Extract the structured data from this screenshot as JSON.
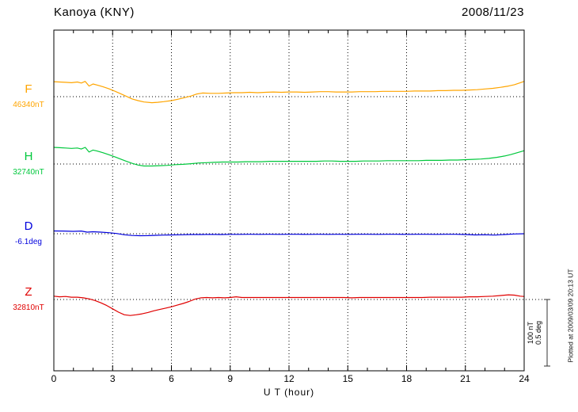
{
  "header": {
    "title": "Kanoya (KNY)",
    "date": "2008/11/23"
  },
  "chart_data": {
    "type": "line",
    "title": "Kanoya (KNY)",
    "date": "2008/11/23",
    "xlabel": "U T (hour)",
    "ylabel": "",
    "x_range": [
      0,
      24
    ],
    "x_ticks": [
      "0",
      "3",
      "6",
      "9",
      "12",
      "15",
      "18",
      "21",
      "24"
    ],
    "grid_hours": [
      3,
      6,
      9,
      12,
      15,
      18,
      21
    ],
    "grid": "dotted-vertical-every-3h, dotted-baseline-per-trace",
    "scale_bar": {
      "nT": 100,
      "deg": 0.5,
      "labels": [
        "100 nT",
        "0.5 deg"
      ]
    },
    "plotted_at": "Plotted at 2009/03/09 20:13 UT",
    "series": [
      {
        "name": "F",
        "unit": "nT",
        "baseline_value": 46340,
        "baseline_label": "46340nT",
        "color": "#ffa500",
        "points": [
          [
            0,
            22.5
          ],
          [
            0.3,
            22
          ],
          [
            0.6,
            21.5
          ],
          [
            0.9,
            21
          ],
          [
            1.2,
            22
          ],
          [
            1.4,
            20.5
          ],
          [
            1.6,
            23
          ],
          [
            1.8,
            16
          ],
          [
            2.0,
            19
          ],
          [
            2.2,
            17.5
          ],
          [
            2.5,
            15
          ],
          [
            2.8,
            12
          ],
          [
            3.1,
            8.5
          ],
          [
            3.4,
            4.5
          ],
          [
            3.7,
            0.5
          ],
          [
            4.0,
            -3.5
          ],
          [
            4.3,
            -6
          ],
          [
            4.6,
            -8
          ],
          [
            5.0,
            -9
          ],
          [
            5.3,
            -8.5
          ],
          [
            5.6,
            -7.5
          ],
          [
            6.0,
            -6
          ],
          [
            6.3,
            -4
          ],
          [
            6.6,
            -2
          ],
          [
            7.0,
            1
          ],
          [
            7.3,
            4
          ],
          [
            7.6,
            5.5
          ],
          [
            8.0,
            5
          ],
          [
            8.4,
            5
          ],
          [
            8.8,
            5.5
          ],
          [
            9.2,
            6
          ],
          [
            9.6,
            6
          ],
          [
            10.0,
            6.5
          ],
          [
            10.4,
            6
          ],
          [
            10.8,
            6.5
          ],
          [
            11.2,
            7
          ],
          [
            11.6,
            6.5
          ],
          [
            12.0,
            7
          ],
          [
            12.4,
            7
          ],
          [
            12.8,
            6.5
          ],
          [
            13.2,
            7
          ],
          [
            13.6,
            7.5
          ],
          [
            14.0,
            7.5
          ],
          [
            14.4,
            7
          ],
          [
            14.8,
            7
          ],
          [
            15.2,
            7
          ],
          [
            15.6,
            7.5
          ],
          [
            16.0,
            7.5
          ],
          [
            16.4,
            7.5
          ],
          [
            16.8,
            8
          ],
          [
            17.2,
            8
          ],
          [
            17.6,
            8
          ],
          [
            18.0,
            8
          ],
          [
            18.4,
            8.5
          ],
          [
            18.8,
            8.5
          ],
          [
            19.2,
            8.5
          ],
          [
            19.6,
            9
          ],
          [
            20.0,
            9
          ],
          [
            20.4,
            9.5
          ],
          [
            20.8,
            9.5
          ],
          [
            21.2,
            10
          ],
          [
            21.6,
            10.5
          ],
          [
            22.0,
            11.5
          ],
          [
            22.4,
            12.5
          ],
          [
            22.8,
            14
          ],
          [
            23.2,
            16
          ],
          [
            23.5,
            18
          ],
          [
            23.8,
            21
          ],
          [
            24.0,
            23
          ]
        ]
      },
      {
        "name": "H",
        "unit": "nT",
        "baseline_value": 32740,
        "baseline_label": "32740nT",
        "color": "#00c83c",
        "points": [
          [
            0,
            25
          ],
          [
            0.3,
            24.5
          ],
          [
            0.6,
            24
          ],
          [
            0.9,
            23.5
          ],
          [
            1.2,
            24
          ],
          [
            1.4,
            22.5
          ],
          [
            1.6,
            25
          ],
          [
            1.8,
            18
          ],
          [
            2.0,
            21
          ],
          [
            2.2,
            19.5
          ],
          [
            2.5,
            17
          ],
          [
            2.8,
            14
          ],
          [
            3.1,
            11
          ],
          [
            3.4,
            7.5
          ],
          [
            3.7,
            4
          ],
          [
            4.0,
            1
          ],
          [
            4.3,
            -1.5
          ],
          [
            4.6,
            -3
          ],
          [
            5.0,
            -3
          ],
          [
            5.4,
            -2.5
          ],
          [
            5.8,
            -2
          ],
          [
            6.2,
            -1
          ],
          [
            6.6,
            -0.5
          ],
          [
            7.0,
            0.5
          ],
          [
            7.4,
            1.5
          ],
          [
            7.8,
            2
          ],
          [
            8.2,
            2.5
          ],
          [
            8.6,
            3
          ],
          [
            9.0,
            3
          ],
          [
            9.4,
            3
          ],
          [
            9.8,
            3.5
          ],
          [
            10.2,
            3.5
          ],
          [
            10.6,
            3.5
          ],
          [
            11.0,
            4
          ],
          [
            11.4,
            4
          ],
          [
            11.8,
            4
          ],
          [
            12.2,
            4
          ],
          [
            12.6,
            4
          ],
          [
            13.0,
            4
          ],
          [
            13.4,
            4
          ],
          [
            13.8,
            4.5
          ],
          [
            14.2,
            4.5
          ],
          [
            14.6,
            4
          ],
          [
            15.0,
            4
          ],
          [
            15.4,
            4
          ],
          [
            15.8,
            4.5
          ],
          [
            16.2,
            4.5
          ],
          [
            16.6,
            4.5
          ],
          [
            17.0,
            5
          ],
          [
            17.4,
            5
          ],
          [
            17.8,
            5
          ],
          [
            18.2,
            5
          ],
          [
            18.6,
            5
          ],
          [
            19.0,
            5.5
          ],
          [
            19.4,
            5.5
          ],
          [
            19.8,
            5.5
          ],
          [
            20.2,
            6
          ],
          [
            20.6,
            6
          ],
          [
            21.0,
            6.5
          ],
          [
            21.4,
            7
          ],
          [
            21.8,
            7.5
          ],
          [
            22.2,
            8.5
          ],
          [
            22.6,
            10
          ],
          [
            23.0,
            12
          ],
          [
            23.3,
            14
          ],
          [
            23.6,
            16.5
          ],
          [
            24.0,
            20
          ]
        ]
      },
      {
        "name": "D",
        "unit": "deg",
        "baseline_value": -6.1,
        "baseline_label": "-6.1deg",
        "color": "#0000dd",
        "points": [
          [
            0,
            0.021
          ],
          [
            0.5,
            0.02
          ],
          [
            1.0,
            0.018
          ],
          [
            1.4,
            0.02
          ],
          [
            1.7,
            0.012
          ],
          [
            2.0,
            0.015
          ],
          [
            2.4,
            0.012
          ],
          [
            2.8,
            0.008
          ],
          [
            3.2,
            0.002
          ],
          [
            3.6,
            -0.008
          ],
          [
            4.0,
            -0.013
          ],
          [
            4.4,
            -0.015
          ],
          [
            4.8,
            -0.014
          ],
          [
            5.2,
            -0.012
          ],
          [
            5.6,
            -0.01
          ],
          [
            6.0,
            -0.009
          ],
          [
            6.5,
            -0.008
          ],
          [
            7.0,
            -0.006
          ],
          [
            7.5,
            -0.006
          ],
          [
            8.0,
            -0.005
          ],
          [
            8.5,
            -0.006
          ],
          [
            9.0,
            -0.005
          ],
          [
            9.5,
            -0.005
          ],
          [
            10.0,
            -0.004
          ],
          [
            10.5,
            -0.005
          ],
          [
            11.0,
            -0.004
          ],
          [
            11.5,
            -0.005
          ],
          [
            12.0,
            -0.004
          ],
          [
            12.5,
            -0.004
          ],
          [
            13.0,
            -0.005
          ],
          [
            13.5,
            -0.004
          ],
          [
            14.0,
            -0.005
          ],
          [
            14.5,
            -0.004
          ],
          [
            15.0,
            -0.005
          ],
          [
            15.5,
            -0.004
          ],
          [
            16.0,
            -0.004
          ],
          [
            16.5,
            -0.005
          ],
          [
            17.0,
            -0.004
          ],
          [
            17.5,
            -0.004
          ],
          [
            18.0,
            -0.005
          ],
          [
            18.5,
            -0.004
          ],
          [
            19.0,
            -0.004
          ],
          [
            19.5,
            -0.005
          ],
          [
            20.0,
            -0.004
          ],
          [
            20.5,
            -0.004
          ],
          [
            21.0,
            -0.006
          ],
          [
            21.5,
            -0.009
          ],
          [
            22.0,
            -0.008
          ],
          [
            22.5,
            -0.01
          ],
          [
            23.0,
            -0.006
          ],
          [
            23.5,
            -0.002
          ],
          [
            24.0,
            0
          ]
        ]
      },
      {
        "name": "Z",
        "unit": "nT",
        "baseline_value": 32810,
        "baseline_label": "32810nT",
        "color": "#e00000",
        "points": [
          [
            0,
            5
          ],
          [
            0.3,
            4
          ],
          [
            0.6,
            4.5
          ],
          [
            0.9,
            3.5
          ],
          [
            1.2,
            3.5
          ],
          [
            1.5,
            2.5
          ],
          [
            1.8,
            1
          ],
          [
            2.1,
            -1.5
          ],
          [
            2.4,
            -5
          ],
          [
            2.7,
            -9
          ],
          [
            3.0,
            -14
          ],
          [
            3.3,
            -19
          ],
          [
            3.6,
            -23
          ],
          [
            3.9,
            -24
          ],
          [
            4.2,
            -23
          ],
          [
            4.5,
            -21.5
          ],
          [
            4.8,
            -19.5
          ],
          [
            5.1,
            -17
          ],
          [
            5.4,
            -15
          ],
          [
            5.7,
            -13
          ],
          [
            6.0,
            -11
          ],
          [
            6.3,
            -8.5
          ],
          [
            6.6,
            -6
          ],
          [
            6.9,
            -3
          ],
          [
            7.2,
            0.5
          ],
          [
            7.5,
            2.5
          ],
          [
            7.8,
            3
          ],
          [
            8.1,
            2.5
          ],
          [
            8.4,
            3
          ],
          [
            8.7,
            2.5
          ],
          [
            9.0,
            3
          ],
          [
            9.3,
            4
          ],
          [
            9.6,
            3
          ],
          [
            10.0,
            3
          ],
          [
            10.4,
            3
          ],
          [
            10.8,
            3
          ],
          [
            11.2,
            3
          ],
          [
            11.6,
            3
          ],
          [
            12.0,
            3
          ],
          [
            12.4,
            3
          ],
          [
            12.8,
            3
          ],
          [
            13.2,
            3
          ],
          [
            13.6,
            3
          ],
          [
            14.0,
            3
          ],
          [
            14.4,
            3
          ],
          [
            14.8,
            3
          ],
          [
            15.2,
            2.5
          ],
          [
            15.6,
            3
          ],
          [
            16.0,
            3
          ],
          [
            16.4,
            3
          ],
          [
            16.8,
            3
          ],
          [
            17.2,
            3
          ],
          [
            17.6,
            3
          ],
          [
            18.0,
            3
          ],
          [
            18.4,
            3
          ],
          [
            18.8,
            3
          ],
          [
            19.2,
            3.5
          ],
          [
            19.6,
            3.5
          ],
          [
            20.0,
            3.5
          ],
          [
            20.4,
            3.5
          ],
          [
            20.8,
            3.5
          ],
          [
            21.2,
            4
          ],
          [
            21.6,
            4
          ],
          [
            22.0,
            4.5
          ],
          [
            22.4,
            5
          ],
          [
            22.8,
            6
          ],
          [
            23.2,
            7
          ],
          [
            23.5,
            6.5
          ],
          [
            23.8,
            5
          ],
          [
            24.0,
            4.5
          ]
        ]
      }
    ]
  }
}
